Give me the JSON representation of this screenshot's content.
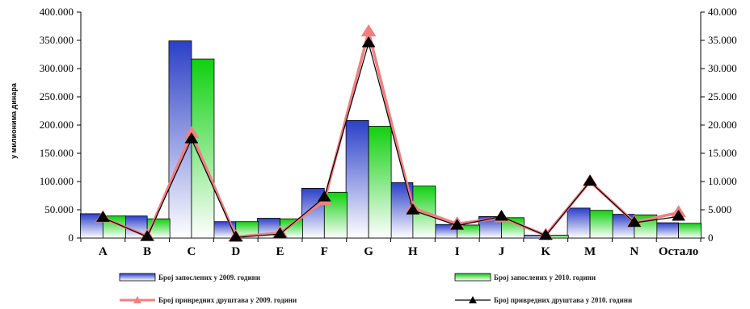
{
  "chart_data": {
    "type": "bar",
    "categories": [
      "A",
      "B",
      "C",
      "D",
      "E",
      "F",
      "G",
      "H",
      "I",
      "J",
      "K",
      "M",
      "N",
      "Остало"
    ],
    "ylabel": "у милионима динара",
    "ylim": [
      0,
      400000
    ],
    "y2lim": [
      0,
      40000
    ],
    "y_ticks": [
      "0",
      "50.000",
      "100.000",
      "150.000",
      "200.000",
      "250.000",
      "300.000",
      "350.000",
      "400.000"
    ],
    "y2_ticks": [
      "0",
      "5.000",
      "10.000",
      "15.000",
      "20.000",
      "25.000",
      "30.000",
      "35.000",
      "40.000"
    ],
    "series": [
      {
        "name": "Број запослених у 2009. години",
        "kind": "bar",
        "axis": "left",
        "color": "#2b3fc8",
        "values": [
          43000,
          39000,
          349000,
          29000,
          35000,
          88000,
          208000,
          98000,
          24000,
          38000,
          5000,
          53000,
          42000,
          27000
        ]
      },
      {
        "name": "Број запослених у 2010. години",
        "kind": "bar",
        "axis": "left",
        "color": "#10d010",
        "values": [
          39000,
          34000,
          317000,
          29000,
          34000,
          81000,
          198000,
          92000,
          23000,
          36000,
          5000,
          49000,
          41000,
          26000
        ]
      },
      {
        "name": "Број привредних друштава у 2009. години",
        "kind": "line",
        "axis": "right",
        "color": "#f08080",
        "values": [
          3600,
          300,
          18500,
          200,
          900,
          6600,
          36500,
          5300,
          2500,
          3600,
          500,
          10000,
          2800,
          4500
        ]
      },
      {
        "name": "Број привредних друштава у 2010. години",
        "kind": "line",
        "axis": "right",
        "color": "#000000",
        "values": [
          3600,
          200,
          17500,
          100,
          700,
          7200,
          34500,
          4900,
          2200,
          3800,
          400,
          10000,
          2700,
          3800
        ]
      }
    ],
    "grid": false,
    "legend": "bottom"
  }
}
